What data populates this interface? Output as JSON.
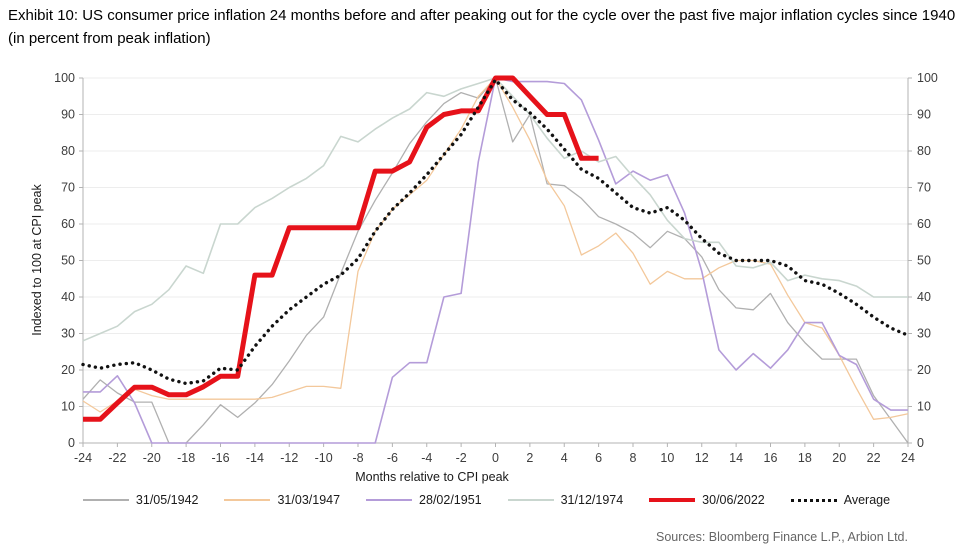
{
  "header": {
    "title": "Exhibit 10: US consumer price inflation 24 months before and after peaking out for the cycle over the past five major inflation cycles since 1940 (in percent from peak inflation)"
  },
  "source": "Sources: Bloomberg Finance L.P., Arbion Ltd.",
  "chart_data": {
    "type": "line",
    "title": "US consumer price inflation 24 months before and after peaking out",
    "xlabel": "Months relative to CPI peak",
    "ylabel": "Indexed to 100 at CPI peak",
    "xlim": [
      -24,
      24
    ],
    "ylim": [
      0,
      100
    ],
    "x_ticks": [
      -24,
      -22,
      -20,
      -18,
      -16,
      -14,
      -12,
      -10,
      -8,
      -6,
      -4,
      -2,
      0,
      2,
      4,
      6,
      8,
      10,
      12,
      14,
      16,
      18,
      20,
      22,
      24
    ],
    "y_ticks": [
      0,
      10,
      20,
      30,
      40,
      50,
      60,
      70,
      80,
      90,
      100
    ],
    "grid": "horizontal",
    "legend_position": "bottom",
    "axis_color": "#b3b3b3",
    "grid_color": "#ededed",
    "tick_label_color": "#3d3d3d",
    "x": [
      -24,
      -23,
      -22,
      -21,
      -20,
      -19,
      -18,
      -17,
      -16,
      -15,
      -14,
      -13,
      -12,
      -11,
      -10,
      -9,
      -8,
      -7,
      -6,
      -5,
      -4,
      -3,
      -2,
      -1,
      0,
      1,
      2,
      3,
      4,
      5,
      6,
      7,
      8,
      9,
      10,
      11,
      12,
      13,
      14,
      15,
      16,
      17,
      18,
      19,
      20,
      21,
      22,
      23,
      24
    ],
    "series": [
      {
        "name": "31/05/1942",
        "color": "#b0b0b0",
        "width": 1.3,
        "dotted": false,
        "values": [
          12,
          17.3,
          13.7,
          11.2,
          11.2,
          0,
          0,
          5,
          10.5,
          7,
          11,
          16,
          22.5,
          29.5,
          34.5,
          46.5,
          58,
          66.5,
          74,
          82,
          88,
          93,
          96,
          94.5,
          100,
          82.5,
          90,
          71,
          70.5,
          67,
          62,
          60,
          57.5,
          53.5,
          58,
          56,
          51,
          42,
          37,
          36.5,
          41,
          33,
          27.5,
          23,
          23,
          23,
          13,
          6.5,
          0
        ]
      },
      {
        "name": "31/03/1947",
        "color": "#f3c89b",
        "width": 1.3,
        "dotted": false,
        "values": [
          11.5,
          8.5,
          11.5,
          14.7,
          13,
          12,
          12,
          12,
          12,
          12,
          12,
          12.5,
          14,
          15.5,
          15.5,
          15,
          47,
          58,
          64,
          68,
          72,
          79,
          86,
          95,
          100,
          92,
          83,
          72,
          65,
          51.5,
          54,
          57.5,
          52,
          43.5,
          47,
          45,
          45,
          48,
          50,
          50,
          49,
          40.5,
          33,
          31.5,
          24,
          15,
          6.5,
          7,
          8
        ]
      },
      {
        "name": "28/02/1951",
        "color": "#b49cd9",
        "width": 1.6,
        "dotted": false,
        "values": [
          14,
          14,
          18.4,
          11,
          0,
          0,
          0,
          0,
          0,
          0,
          0,
          0,
          0,
          0,
          0,
          0,
          0,
          0,
          18,
          22,
          22,
          40,
          41,
          77,
          100,
          99,
          99,
          99,
          98.5,
          94,
          83,
          71,
          74.5,
          72,
          73.5,
          63,
          47,
          25.5,
          20,
          24.5,
          20.5,
          25.5,
          33,
          33,
          24,
          21.5,
          12,
          9,
          9
        ]
      },
      {
        "name": "31/12/1974",
        "color": "#c9d6cf",
        "width": 1.6,
        "dotted": false,
        "values": [
          28,
          30,
          32,
          36,
          38,
          42,
          48.5,
          46.5,
          60,
          60,
          64.5,
          67,
          70,
          72.5,
          76,
          84,
          82.5,
          86,
          89,
          91.5,
          96,
          95,
          97,
          98.5,
          100,
          95,
          90,
          83.5,
          78,
          80,
          77,
          78.5,
          73,
          68,
          61,
          56,
          55,
          55,
          48.5,
          48,
          49.5,
          44.5,
          46,
          45,
          44.5,
          43,
          40,
          40,
          40
        ]
      },
      {
        "name": "30/06/2022",
        "color": "#e6121a",
        "width": 5,
        "dotted": false,
        "values": [
          6.5,
          6.5,
          11,
          15.3,
          15.3,
          13.2,
          13.2,
          15.4,
          18.3,
          18.3,
          46,
          46,
          59,
          59,
          59,
          59,
          59,
          74.5,
          74.5,
          77,
          86.5,
          90,
          91,
          91,
          100,
          100,
          95,
          90,
          90,
          78,
          78,
          null,
          null,
          null,
          null,
          null,
          null,
          null,
          null,
          null,
          null,
          null,
          null,
          null,
          null,
          null,
          null,
          null,
          null
        ]
      },
      {
        "name": "Average",
        "color": "#111111",
        "width": 3.4,
        "dotted": true,
        "values": [
          21.5,
          20.5,
          21.5,
          22,
          20,
          17.5,
          16.3,
          17,
          20.5,
          20,
          26.5,
          32,
          36.5,
          40,
          43.5,
          46,
          50.5,
          58,
          64,
          68.5,
          73.5,
          79,
          84.5,
          92,
          99.5,
          94,
          90.5,
          86,
          80.5,
          75,
          72.5,
          68.5,
          64.5,
          63,
          64.5,
          61,
          56,
          52,
          50,
          50,
          50,
          48.5,
          44.5,
          43.5,
          41,
          38,
          34.5,
          31.5,
          29.5
        ]
      }
    ]
  }
}
